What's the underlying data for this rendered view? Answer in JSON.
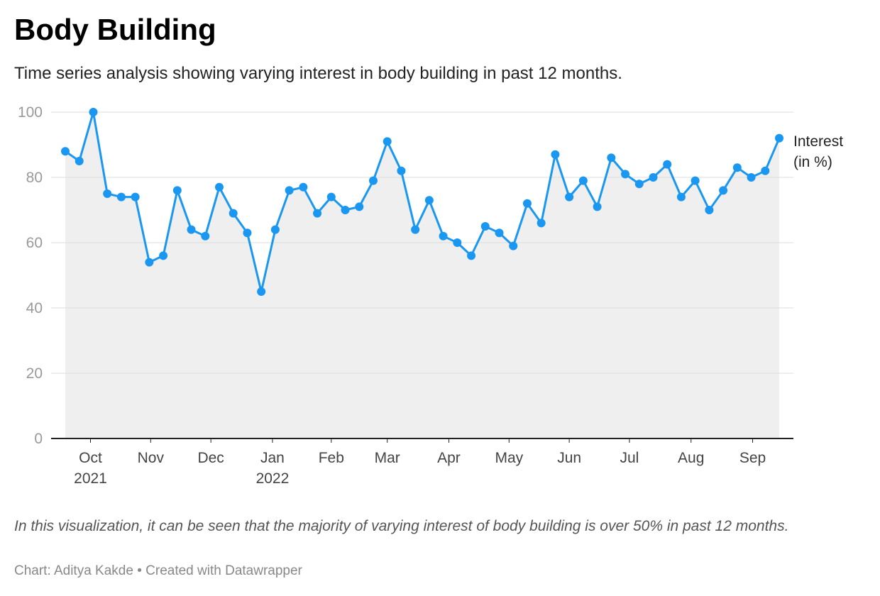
{
  "header": {
    "title": "Body Building",
    "subtitle": "Time series analysis showing varying interest in body building in past 12 months."
  },
  "chart_data": {
    "type": "area",
    "title": "Body Building",
    "subtitle": "Time series analysis showing varying interest in body building in past 12 months.",
    "ylabel": "",
    "xlabel": "",
    "ylim": [
      0,
      100
    ],
    "yticks": [
      0,
      20,
      40,
      60,
      80,
      100
    ],
    "grid": true,
    "x_ticks": [
      {
        "index": 1.8,
        "label": "Oct",
        "year": "2021"
      },
      {
        "index": 6.1,
        "label": "Nov",
        "year": ""
      },
      {
        "index": 10.4,
        "label": "Dec",
        "year": ""
      },
      {
        "index": 14.8,
        "label": "Jan",
        "year": "2022"
      },
      {
        "index": 19.0,
        "label": "Feb",
        "year": ""
      },
      {
        "index": 23.0,
        "label": "Mar",
        "year": ""
      },
      {
        "index": 27.4,
        "label": "Apr",
        "year": ""
      },
      {
        "index": 31.7,
        "label": "May",
        "year": ""
      },
      {
        "index": 36.0,
        "label": "Jun",
        "year": ""
      },
      {
        "index": 40.3,
        "label": "Jul",
        "year": ""
      },
      {
        "index": 44.7,
        "label": "Aug",
        "year": ""
      },
      {
        "index": 49.1,
        "label": "Sep",
        "year": ""
      }
    ],
    "series": [
      {
        "name": "Interest (in %)",
        "color": "#1a97f0",
        "values": [
          88,
          85,
          100,
          75,
          74,
          74,
          54,
          56,
          76,
          64,
          62,
          77,
          69,
          63,
          45,
          64,
          76,
          77,
          69,
          74,
          70,
          71,
          79,
          91,
          82,
          64,
          73,
          62,
          60,
          56,
          65,
          63,
          59,
          72,
          66,
          87,
          74,
          79,
          71,
          86,
          81,
          78,
          80,
          84,
          74,
          79,
          70,
          76,
          83,
          80,
          82,
          92
        ]
      }
    ],
    "legend": {
      "label_line1": "Interest",
      "label_line2": "(in %)",
      "placement": "right"
    }
  },
  "note": "In this visualization, it can be seen that the majority of varying interest of body building is over 50% in past 12 months.",
  "footer": {
    "credit": "Chart: Aditya Kakde",
    "separator": "•",
    "created_with": "Created with Datawrapper"
  },
  "colors": {
    "line": "#1a97f0",
    "area": "#efefef",
    "grid": "#dddddd",
    "axis": "#222222",
    "tick_label": "#999999"
  }
}
